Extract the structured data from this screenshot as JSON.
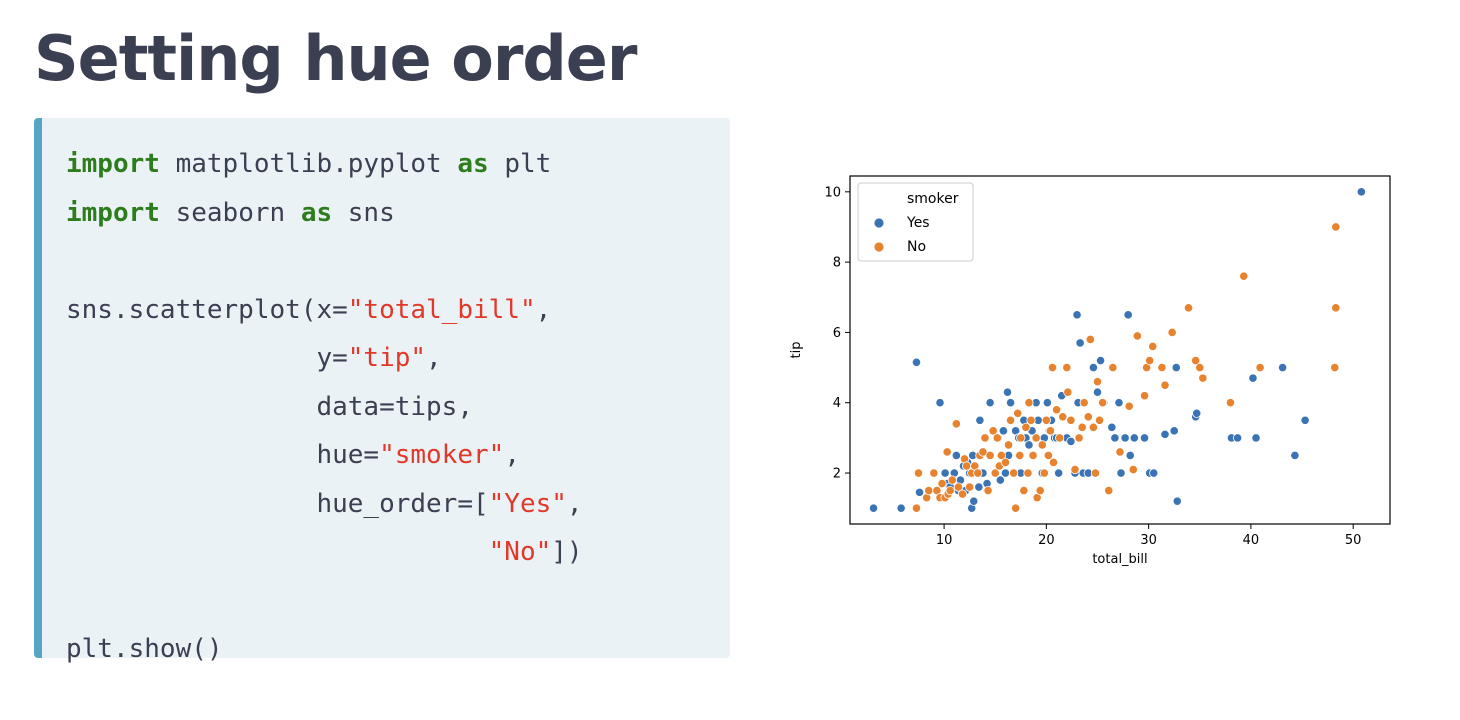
{
  "slide": {
    "title": "Setting hue order"
  },
  "code": {
    "l1_kw1": "import",
    "l1_mod": "matplotlib.pyplot",
    "l1_kw2": "as",
    "l1_alias": "plt",
    "l2_kw1": "import",
    "l2_mod": "seaborn",
    "l2_kw2": "as",
    "l2_alias": "sns",
    "l4_pre": "sns.scatterplot(x=",
    "l4_str": "\"total_bill\"",
    "l4_post": ",",
    "l5_pre": "y=",
    "l5_str": "\"tip\"",
    "l5_post": ",",
    "l6": "data=tips,",
    "l7_pre": "hue=",
    "l7_str": "\"smoker\"",
    "l7_post": ",",
    "l8_pre": "hue_order=[",
    "l8_str": "\"Yes\"",
    "l8_post": ",",
    "l9_str": "\"No\"",
    "l9_post": "])",
    "l11": "plt.show()"
  },
  "chart_data": {
    "type": "scatter",
    "xlabel": "total_bill",
    "ylabel": "tip",
    "xlim": [
      0.8,
      53.6
    ],
    "ylim": [
      0.55,
      10.45
    ],
    "xticks": [
      10,
      20,
      30,
      40,
      50
    ],
    "yticks": [
      2,
      4,
      6,
      8,
      10
    ],
    "grid": false,
    "legend": {
      "title": "smoker",
      "placement": "top-left"
    },
    "series": [
      {
        "name": "Yes",
        "color": "#3a74b4",
        "points": [
          [
            3.1,
            1.0
          ],
          [
            5.8,
            1.0
          ],
          [
            7.3,
            5.15
          ],
          [
            7.6,
            1.45
          ],
          [
            9.6,
            4.0
          ],
          [
            10.1,
            2.0
          ],
          [
            10.3,
            1.7
          ],
          [
            10.6,
            1.6
          ],
          [
            11.0,
            2.0
          ],
          [
            11.2,
            2.5
          ],
          [
            11.4,
            1.5
          ],
          [
            11.6,
            1.8
          ],
          [
            11.9,
            2.2
          ],
          [
            12.1,
            1.5
          ],
          [
            12.3,
            2.3
          ],
          [
            12.5,
            2.0
          ],
          [
            12.7,
            1.0
          ],
          [
            12.8,
            2.5
          ],
          [
            12.9,
            1.2
          ],
          [
            13.2,
            2.0
          ],
          [
            13.4,
            1.6
          ],
          [
            13.5,
            3.5
          ],
          [
            13.8,
            2.0
          ],
          [
            14.2,
            1.7
          ],
          [
            14.5,
            4.0
          ],
          [
            15.0,
            2.0
          ],
          [
            15.3,
            3.0
          ],
          [
            15.5,
            1.8
          ],
          [
            15.8,
            3.2
          ],
          [
            16.0,
            2.0
          ],
          [
            16.2,
            4.3
          ],
          [
            16.3,
            2.5
          ],
          [
            16.5,
            4.0
          ],
          [
            17.0,
            3.2
          ],
          [
            17.3,
            3.0
          ],
          [
            17.5,
            2.0
          ],
          [
            17.8,
            3.5
          ],
          [
            18.0,
            3.0
          ],
          [
            18.3,
            2.8
          ],
          [
            18.6,
            3.2
          ],
          [
            19.0,
            4.0
          ],
          [
            19.2,
            3.5
          ],
          [
            19.6,
            2.0
          ],
          [
            19.8,
            3.0
          ],
          [
            20.1,
            4.0
          ],
          [
            20.3,
            3.2
          ],
          [
            20.5,
            3.5
          ],
          [
            20.8,
            3.0
          ],
          [
            21.0,
            3.0
          ],
          [
            21.2,
            2.0
          ],
          [
            21.5,
            4.2
          ],
          [
            22.0,
            3.0
          ],
          [
            22.4,
            2.9
          ],
          [
            22.8,
            2.0
          ],
          [
            23.0,
            6.5
          ],
          [
            23.1,
            4.0
          ],
          [
            23.3,
            5.7
          ],
          [
            23.6,
            2.0
          ],
          [
            24.1,
            2.0
          ],
          [
            24.6,
            5.0
          ],
          [
            25.0,
            4.3
          ],
          [
            25.3,
            5.2
          ],
          [
            25.6,
            4.0
          ],
          [
            26.4,
            3.3
          ],
          [
            26.7,
            3.0
          ],
          [
            27.1,
            4.0
          ],
          [
            27.3,
            2.0
          ],
          [
            27.7,
            3.0
          ],
          [
            28.0,
            6.5
          ],
          [
            28.2,
            2.5
          ],
          [
            28.6,
            3.0
          ],
          [
            29.6,
            3.0
          ],
          [
            30.1,
            2.0
          ],
          [
            30.5,
            2.0
          ],
          [
            31.6,
            3.1
          ],
          [
            32.5,
            3.2
          ],
          [
            32.7,
            5.0
          ],
          [
            32.8,
            1.2
          ],
          [
            34.6,
            3.6
          ],
          [
            34.7,
            3.7
          ],
          [
            38.1,
            3.0
          ],
          [
            38.7,
            3.0
          ],
          [
            40.2,
            4.7
          ],
          [
            40.5,
            3.0
          ],
          [
            43.1,
            5.0
          ],
          [
            44.3,
            2.5
          ],
          [
            45.3,
            3.5
          ],
          [
            50.8,
            10.0
          ]
        ]
      },
      {
        "name": "No",
        "color": "#e7822e",
        "points": [
          [
            7.3,
            1.0
          ],
          [
            7.5,
            2.0
          ],
          [
            8.3,
            1.3
          ],
          [
            8.5,
            1.5
          ],
          [
            9.0,
            2.0
          ],
          [
            9.3,
            1.5
          ],
          [
            9.6,
            1.3
          ],
          [
            9.8,
            1.7
          ],
          [
            10.1,
            1.3
          ],
          [
            10.3,
            2.6
          ],
          [
            10.4,
            1.4
          ],
          [
            10.6,
            1.5
          ],
          [
            10.8,
            1.8
          ],
          [
            11.2,
            3.4
          ],
          [
            11.4,
            1.6
          ],
          [
            11.8,
            1.4
          ],
          [
            12.0,
            2.4
          ],
          [
            12.2,
            2.2
          ],
          [
            12.5,
            1.6
          ],
          [
            12.7,
            2.0
          ],
          [
            13.0,
            2.2
          ],
          [
            13.3,
            2.0
          ],
          [
            13.5,
            2.5
          ],
          [
            13.8,
            2.6
          ],
          [
            14.0,
            3.0
          ],
          [
            14.3,
            1.5
          ],
          [
            14.5,
            2.5
          ],
          [
            14.8,
            3.2
          ],
          [
            15.0,
            2.0
          ],
          [
            15.2,
            3.0
          ],
          [
            15.4,
            2.2
          ],
          [
            15.6,
            2.5
          ],
          [
            16.0,
            2.3
          ],
          [
            16.3,
            2.8
          ],
          [
            16.5,
            3.5
          ],
          [
            16.8,
            2.0
          ],
          [
            17.0,
            1.0
          ],
          [
            17.2,
            3.7
          ],
          [
            17.4,
            2.5
          ],
          [
            17.5,
            3.0
          ],
          [
            17.8,
            1.5
          ],
          [
            18.0,
            3.3
          ],
          [
            18.2,
            2.0
          ],
          [
            18.3,
            4.0
          ],
          [
            18.5,
            3.5
          ],
          [
            18.7,
            2.5
          ],
          [
            19.0,
            3.0
          ],
          [
            19.1,
            1.3
          ],
          [
            19.4,
            1.5
          ],
          [
            19.6,
            2.8
          ],
          [
            19.8,
            2.0
          ],
          [
            20.0,
            3.5
          ],
          [
            20.2,
            2.5
          ],
          [
            20.4,
            3.2
          ],
          [
            20.6,
            5.0
          ],
          [
            20.7,
            2.3
          ],
          [
            21.0,
            3.8
          ],
          [
            21.3,
            3.0
          ],
          [
            21.6,
            3.6
          ],
          [
            22.0,
            5.0
          ],
          [
            22.1,
            4.3
          ],
          [
            22.4,
            3.5
          ],
          [
            22.8,
            2.1
          ],
          [
            23.2,
            3.0
          ],
          [
            23.5,
            3.3
          ],
          [
            23.7,
            4.0
          ],
          [
            24.1,
            3.6
          ],
          [
            24.3,
            5.8
          ],
          [
            24.6,
            3.3
          ],
          [
            24.8,
            2.0
          ],
          [
            25.0,
            4.6
          ],
          [
            25.2,
            3.5
          ],
          [
            25.5,
            4.0
          ],
          [
            26.1,
            1.5
          ],
          [
            26.5,
            5.0
          ],
          [
            27.2,
            2.6
          ],
          [
            28.1,
            3.9
          ],
          [
            28.5,
            2.1
          ],
          [
            28.9,
            5.9
          ],
          [
            29.6,
            4.2
          ],
          [
            29.8,
            5.0
          ],
          [
            30.1,
            5.2
          ],
          [
            30.4,
            5.6
          ],
          [
            31.3,
            5.0
          ],
          [
            31.6,
            4.5
          ],
          [
            32.3,
            6.0
          ],
          [
            33.9,
            6.7
          ],
          [
            34.6,
            5.2
          ],
          [
            35.0,
            5.0
          ],
          [
            35.3,
            4.7
          ],
          [
            38.0,
            4.0
          ],
          [
            39.3,
            7.6
          ],
          [
            40.9,
            5.0
          ],
          [
            48.2,
            5.0
          ],
          [
            48.3,
            6.7
          ],
          [
            48.3,
            9.0
          ]
        ]
      }
    ]
  }
}
